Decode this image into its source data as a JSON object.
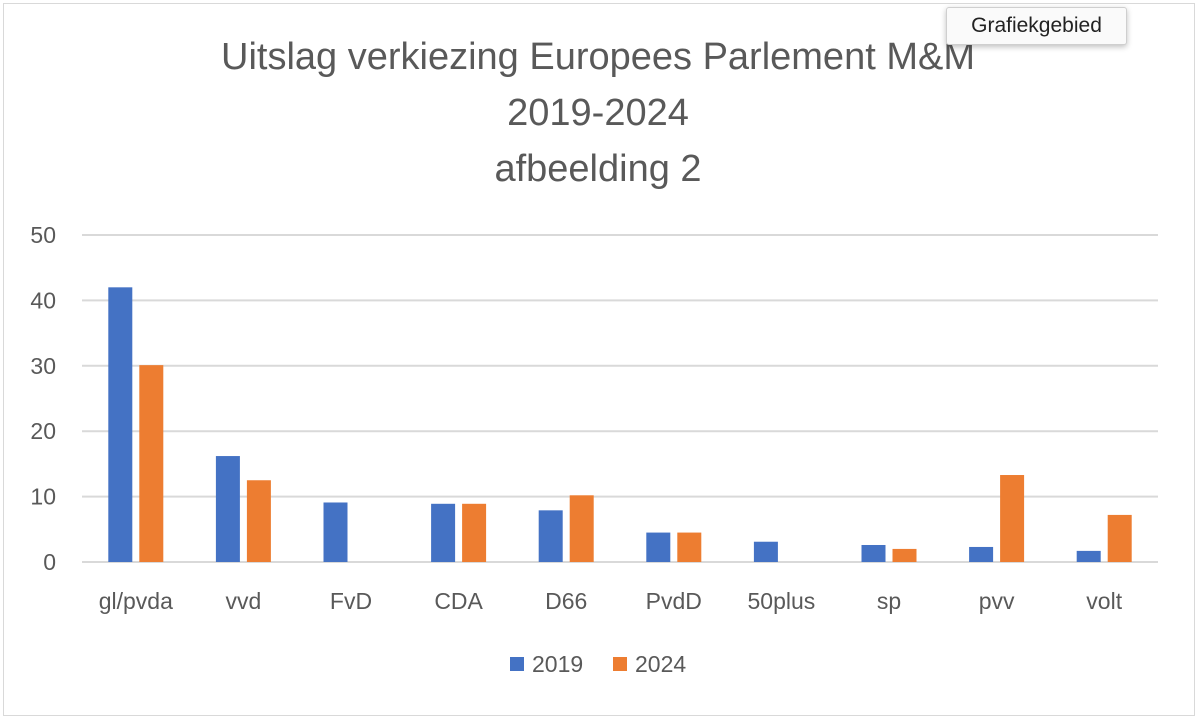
{
  "chart_data": {
    "type": "bar",
    "title": [
      "Uitslag verkiezing Europees Parlement M&M",
      "2019-2024",
      "afbeelding 2"
    ],
    "categories": [
      "gl/pvda",
      "vvd",
      "FvD",
      "CDA",
      "D66",
      "PvdD",
      "50plus",
      "sp",
      "pvv",
      "volt"
    ],
    "series": [
      {
        "name": "2019",
        "color": "#4472C4",
        "values": [
          42,
          16.2,
          9.1,
          8.9,
          7.9,
          4.5,
          3.1,
          2.6,
          2.3,
          1.7
        ]
      },
      {
        "name": "2024",
        "color": "#ED7D31",
        "values": [
          30.1,
          12.5,
          null,
          8.9,
          10.2,
          4.5,
          null,
          2.0,
          13.3,
          7.2
        ]
      }
    ],
    "xlabel": "",
    "ylabel": "",
    "ylim": [
      0,
      50
    ],
    "yticks": [
      "0",
      "10",
      "20",
      "30",
      "40",
      "50"
    ],
    "grid": true,
    "legend": "bottom"
  },
  "tooltip": "Grafiekgebied"
}
